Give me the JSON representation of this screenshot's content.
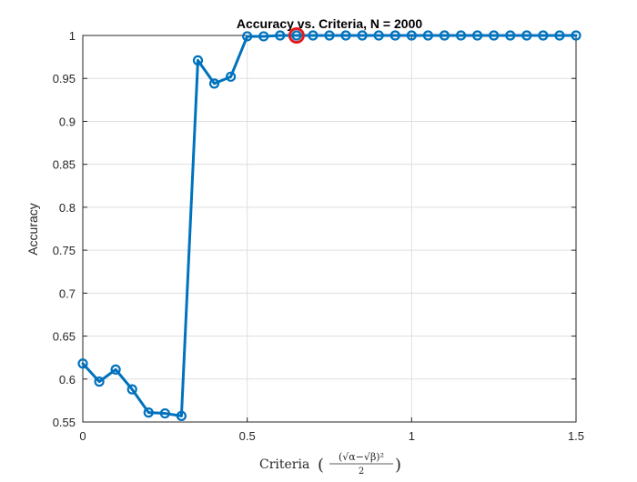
{
  "chart_data": {
    "type": "line",
    "title": "Accuracy vs. Criteria, N = 2000",
    "xlabel": "Criteria",
    "xlabel_formula": {
      "numerator": "(√α−√β)²",
      "denominator": "2"
    },
    "ylabel": "Accuracy",
    "xlim": [
      0,
      1.5
    ],
    "ylim": [
      0.55,
      1.0
    ],
    "xticks": [
      0,
      0.5,
      1,
      1.5
    ],
    "xtick_labels": [
      "0",
      "0.5",
      "1",
      "1.5"
    ],
    "yticks": [
      0.55,
      0.6,
      0.65,
      0.7,
      0.75,
      0.8,
      0.85,
      0.9,
      0.95,
      1.0
    ],
    "ytick_labels": [
      "0.55",
      "0.6",
      "0.65",
      "0.7",
      "0.75",
      "0.8",
      "0.85",
      "0.9",
      "0.95",
      "1"
    ],
    "grid": true,
    "series": [
      {
        "color": "#0072BD",
        "marker": "circle",
        "x": [
          0,
          0.05,
          0.1,
          0.15,
          0.2,
          0.25,
          0.3,
          0.35,
          0.4,
          0.45,
          0.5,
          0.55,
          0.6,
          0.65,
          0.7,
          0.75,
          0.8,
          0.85,
          0.9,
          0.95,
          1.0,
          1.05,
          1.1,
          1.15,
          1.2,
          1.25,
          1.3,
          1.35,
          1.4,
          1.45,
          1.5
        ],
        "y": [
          0.618,
          0.597,
          0.611,
          0.588,
          0.561,
          0.56,
          0.557,
          0.971,
          0.944,
          0.952,
          0.999,
          0.999,
          1.0,
          1.0,
          1.0,
          1.0,
          1.0,
          1.0,
          1.0,
          1.0,
          1.0,
          1.0,
          1.0,
          1.0,
          1.0,
          1.0,
          1.0,
          1.0,
          1.0,
          1.0,
          1.0
        ]
      }
    ],
    "highlight": {
      "x": 0.65,
      "y": 1.0,
      "color": "#E41A1C"
    }
  }
}
